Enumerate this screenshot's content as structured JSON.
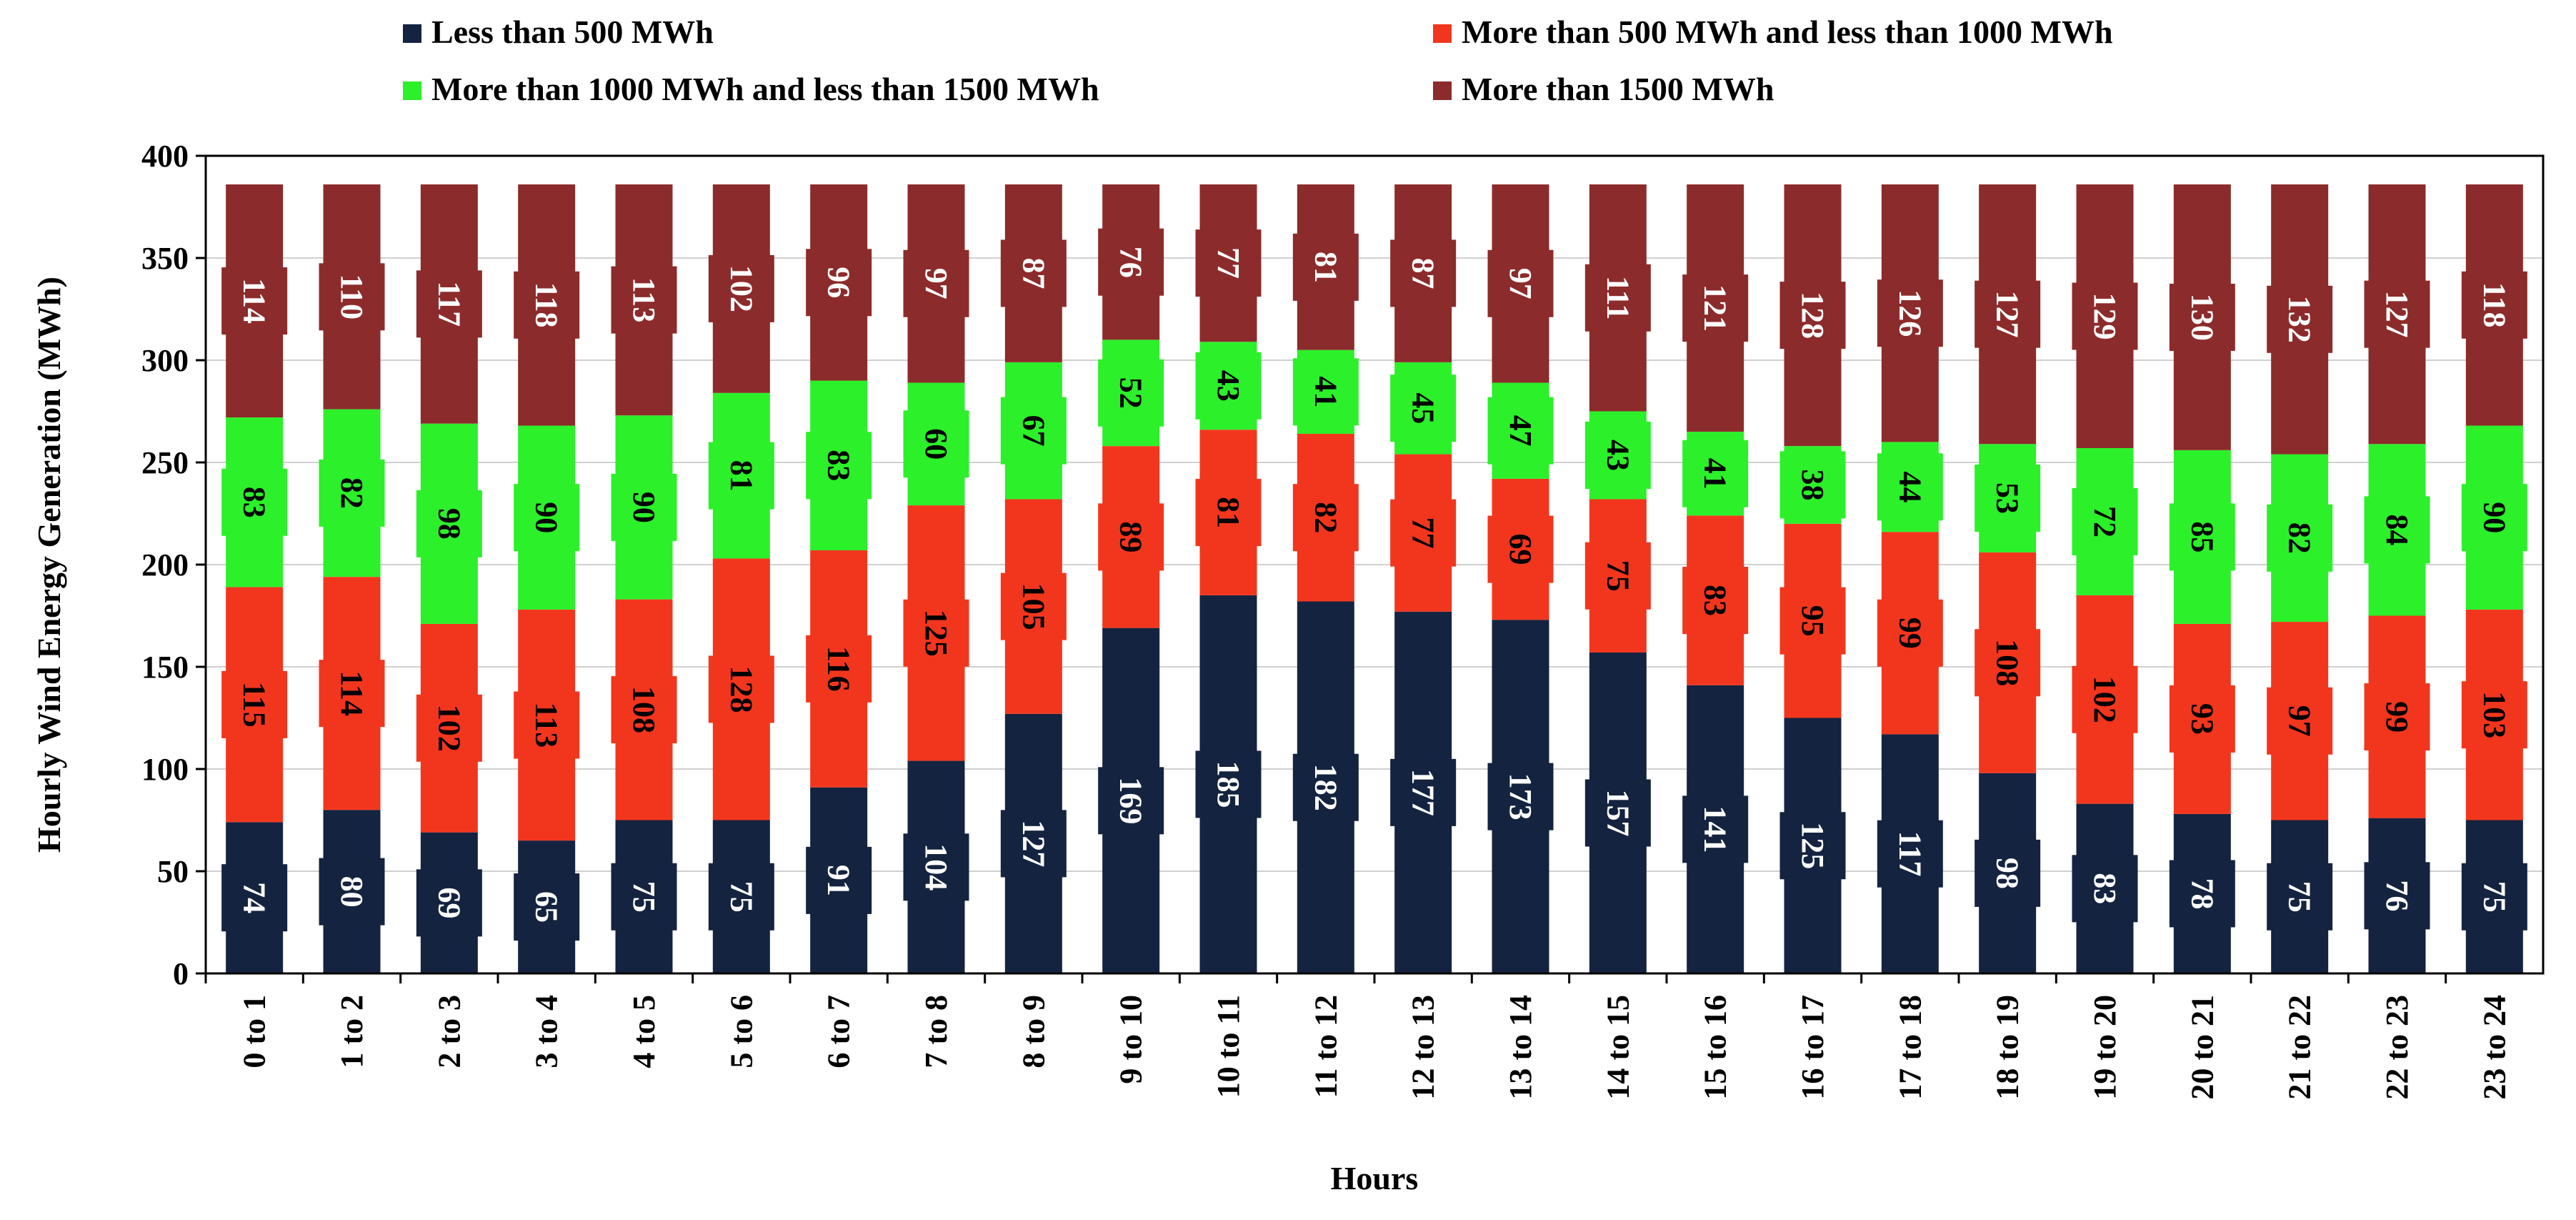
{
  "chart_data": {
    "type": "bar",
    "stacked": true,
    "title": "",
    "xlabel": "Hours",
    "ylabel": "Hourly Wind Energy Generation (MWh)",
    "ylim": [
      0,
      400
    ],
    "yticks": [
      0,
      50,
      100,
      150,
      200,
      250,
      300,
      350,
      400
    ],
    "grid": true,
    "legend_position": "top",
    "categories": [
      "0 to 1",
      "1 to 2",
      "2 to 3",
      "3 to 4",
      "4 to 5",
      "5 to 6",
      "6 to 7",
      "7 to 8",
      "8 to 9",
      "9 to 10",
      "10 to 11",
      "11 to 12",
      "12 to 13",
      "13 to 14",
      "14 to 15",
      "15 to 16",
      "16 to 17",
      "17 to 18",
      "18 to 19",
      "19 to 20",
      "20 to 21",
      "21 to 22",
      "22 to 23",
      "23 to 24"
    ],
    "series": [
      {
        "name": "Less than 500 MWh",
        "color": "#14233f",
        "label_color": "#ffffff",
        "values": [
          74,
          80,
          69,
          65,
          75,
          75,
          91,
          104,
          127,
          169,
          185,
          182,
          177,
          173,
          157,
          141,
          125,
          117,
          98,
          83,
          78,
          75,
          76,
          75
        ]
      },
      {
        "name": "More than 500 MWh and less than 1000 MWh",
        "color": "#f2361e",
        "label_color": "#000000",
        "values": [
          115,
          114,
          102,
          113,
          108,
          128,
          116,
          125,
          105,
          89,
          81,
          82,
          77,
          69,
          75,
          83,
          95,
          99,
          108,
          102,
          93,
          97,
          99,
          103
        ]
      },
      {
        "name": "More than 1000 MWh and less than 1500 MWh",
        "color": "#2cf02a",
        "label_color": "#000000",
        "values": [
          83,
          82,
          98,
          90,
          90,
          81,
          83,
          60,
          67,
          52,
          43,
          41,
          45,
          47,
          43,
          41,
          38,
          44,
          53,
          72,
          85,
          82,
          84,
          90
        ]
      },
      {
        "name": "More than 1500 MWh",
        "color": "#8c2b2b",
        "label_color": "#ffffff",
        "values": [
          114,
          110,
          117,
          118,
          113,
          102,
          96,
          97,
          87,
          76,
          77,
          81,
          87,
          97,
          111,
          121,
          128,
          126,
          127,
          129,
          130,
          132,
          127,
          118
        ]
      }
    ]
  }
}
